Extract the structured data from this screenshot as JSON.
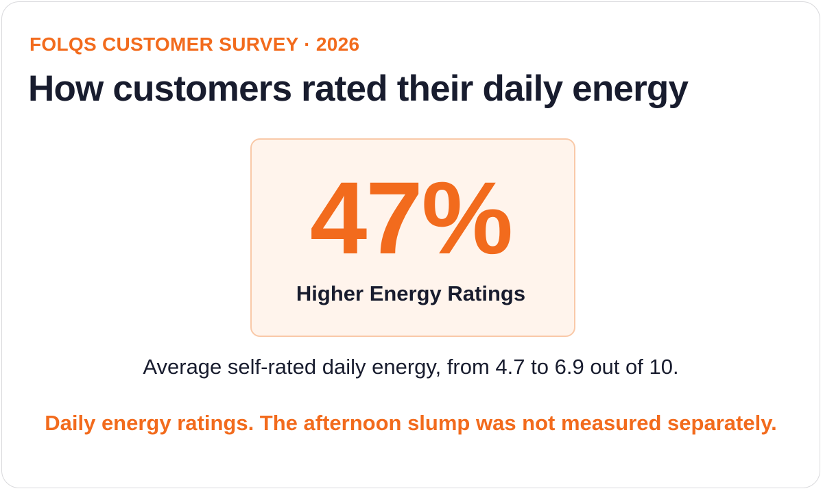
{
  "header": {
    "eyebrow": "FOLQS CUSTOMER SURVEY · 2026",
    "title": "How customers rated their daily energy"
  },
  "stat": {
    "value": "47%",
    "label": "Higher Energy Ratings"
  },
  "subtext": "Average self-rated daily energy, from 4.7 to 6.9 out of 10.",
  "note": "Daily energy ratings. The afternoon slump was not measured separately.",
  "colors": {
    "accent": "#f26b1d",
    "text": "#181c2e",
    "stat_box_bg": "#fff4ec",
    "stat_box_border": "#f9c9a8"
  }
}
